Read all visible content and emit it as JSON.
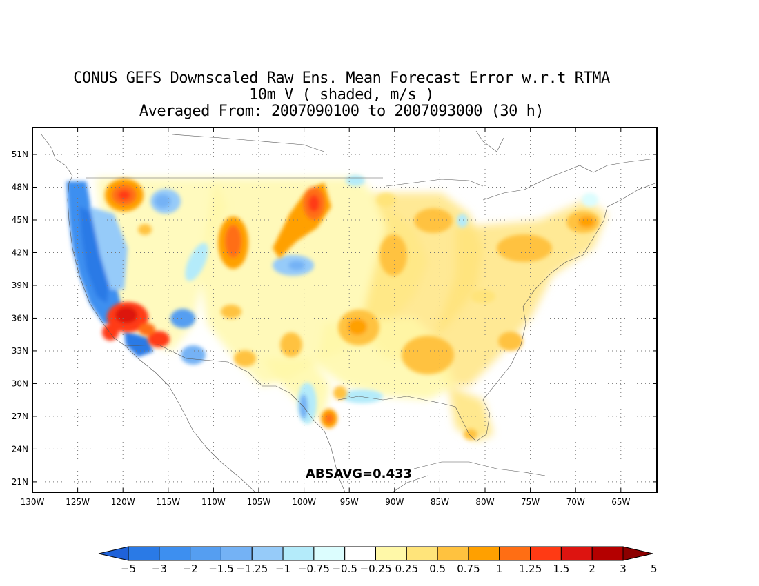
{
  "title": {
    "line1": "CONUS GEFS Downscaled Raw Ens. Mean Forecast Error w.r.t RTMA",
    "line2": "10m V ( shaded, m/s )",
    "line3": "Averaged From: 2007090100 to 2007093000 (30 h)"
  },
  "annotation": "ABSAVG=0.433",
  "latitude_labels": [
    "51N",
    "48N",
    "45N",
    "42N",
    "39N",
    "36N",
    "33N",
    "30N",
    "27N",
    "24N",
    "21N"
  ],
  "latitude_values": [
    51,
    48,
    45,
    42,
    39,
    36,
    33,
    30,
    27,
    24,
    21
  ],
  "longitude_labels": [
    "130W",
    "125W",
    "120W",
    "115W",
    "110W",
    "105W",
    "100W",
    "95W",
    "90W",
    "85W",
    "80W",
    "75W",
    "70W",
    "65W"
  ],
  "longitude_values": [
    -130,
    -125,
    -120,
    -115,
    -110,
    -105,
    -100,
    -95,
    -90,
    -85,
    -80,
    -75,
    -70,
    -65
  ],
  "colorbar": {
    "labels": [
      "-5",
      "-3",
      "-2",
      "-1.5",
      "-1.25",
      "-1",
      "-0.75",
      "-0.5",
      "-0.25",
      "0.25",
      "0.5",
      "0.75",
      "1",
      "1.25",
      "1.5",
      "2",
      "3",
      "5"
    ],
    "colors": [
      "#1f62d9",
      "#2a7ae6",
      "#3d8ff0",
      "#559ef1",
      "#74b2f5",
      "#96cbf9",
      "#b4ebfa",
      "#dcfdfe",
      "#ffffff",
      "#fff8a8",
      "#ffe47a",
      "#ffc23f",
      "#ffa000",
      "#ff6e14",
      "#ff3a14",
      "#dd1410",
      "#b40000",
      "#8c0000"
    ]
  }
}
